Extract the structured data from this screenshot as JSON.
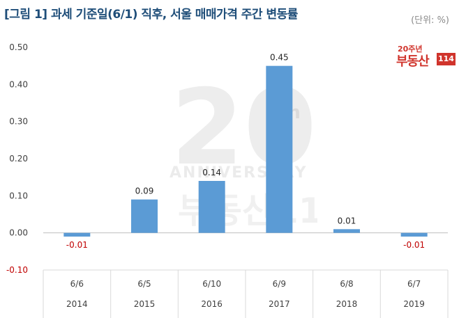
{
  "header": {
    "title": "[그림 1] 과세 기준일(6/1) 직후, 서울 매매가격 주간 변동률",
    "unit": "(단위: %)"
  },
  "logo": {
    "top_text": "20주년",
    "main_text": "부동산",
    "num_text": "114"
  },
  "watermark": {
    "number": "20",
    "suffix": "th",
    "word": "ANNIVERSARY",
    "brand": "부동산114"
  },
  "colors": {
    "bar": "#5b9bd5",
    "title": "#1f4e79",
    "negative_label": "#c00000",
    "grid": "#d9d9d9"
  },
  "chart_data": {
    "type": "bar",
    "categories": [
      "6/6",
      "6/5",
      "6/10",
      "6/9",
      "6/8",
      "6/7"
    ],
    "group_labels": [
      "2014",
      "2015",
      "2016",
      "2017",
      "2018",
      "2019"
    ],
    "values": [
      -0.01,
      0.09,
      0.14,
      0.45,
      0.01,
      -0.01
    ],
    "data_labels": [
      "-0.01",
      "0.09",
      "0.14",
      "0.45",
      "0.01",
      "-0.01"
    ],
    "y_ticks": [
      "0.50",
      "0.40",
      "0.30",
      "0.20",
      "0.10",
      "0.00",
      "-0.10"
    ],
    "ylim": [
      -0.1,
      0.5
    ],
    "title": "[그림 1] 과세 기준일(6/1) 직후, 서울 매매가격 주간 변동률",
    "xlabel": "",
    "ylabel": "",
    "grid": false,
    "legend": "none"
  }
}
